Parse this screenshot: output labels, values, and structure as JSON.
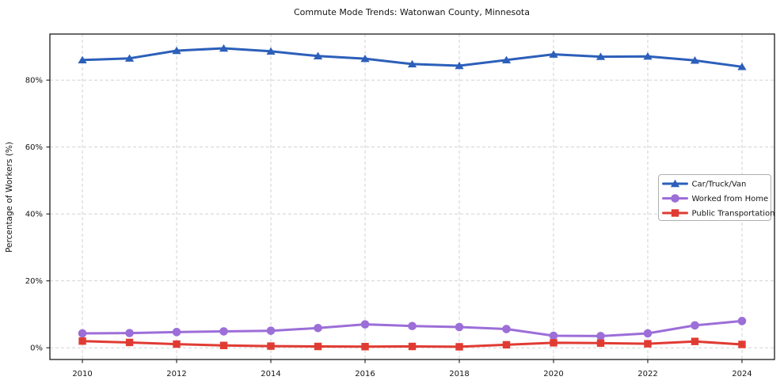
{
  "chart_data": {
    "type": "line",
    "title": "Commute Mode Trends: Watonwan County, Minnesota",
    "xlabel": "",
    "ylabel": "Percentage of Workers (%)",
    "x": [
      2010,
      2011,
      2012,
      2013,
      2014,
      2015,
      2016,
      2017,
      2018,
      2019,
      2020,
      2021,
      2022,
      2023,
      2024
    ],
    "x_ticks": [
      2010,
      2012,
      2014,
      2016,
      2018,
      2020,
      2022,
      2024
    ],
    "y_ticks": [
      0,
      20,
      40,
      60,
      80
    ],
    "y_tick_suffix": "%",
    "xlim": [
      2009.31,
      2024.69
    ],
    "ylim": [
      -3.5,
      93.77
    ],
    "grid": true,
    "grid_style": "dashed",
    "grid_color": "#cccccc",
    "legend_position": "center-right",
    "series": [
      {
        "name": "Car/Truck/Van",
        "color": "#2c5fba",
        "marker": "triangle",
        "values": [
          86.0,
          86.5,
          88.8,
          89.5,
          88.6,
          87.2,
          86.4,
          84.8,
          84.3,
          86.0,
          87.7,
          87.0,
          87.1,
          85.9,
          84.0
        ]
      },
      {
        "name": "Worked from Home",
        "color": "#9c6ed8",
        "marker": "circle",
        "values": [
          4.3,
          4.4,
          4.7,
          4.9,
          5.1,
          5.9,
          7.0,
          6.5,
          6.2,
          5.6,
          3.6,
          3.5,
          4.3,
          6.7,
          8.0
        ]
      },
      {
        "name": "Public Transportation",
        "color": "#e03b33",
        "marker": "square",
        "values": [
          2.0,
          1.6,
          1.1,
          0.7,
          0.5,
          0.4,
          0.35,
          0.4,
          0.3,
          0.9,
          1.5,
          1.4,
          1.2,
          1.9,
          1.0
        ]
      }
    ]
  }
}
